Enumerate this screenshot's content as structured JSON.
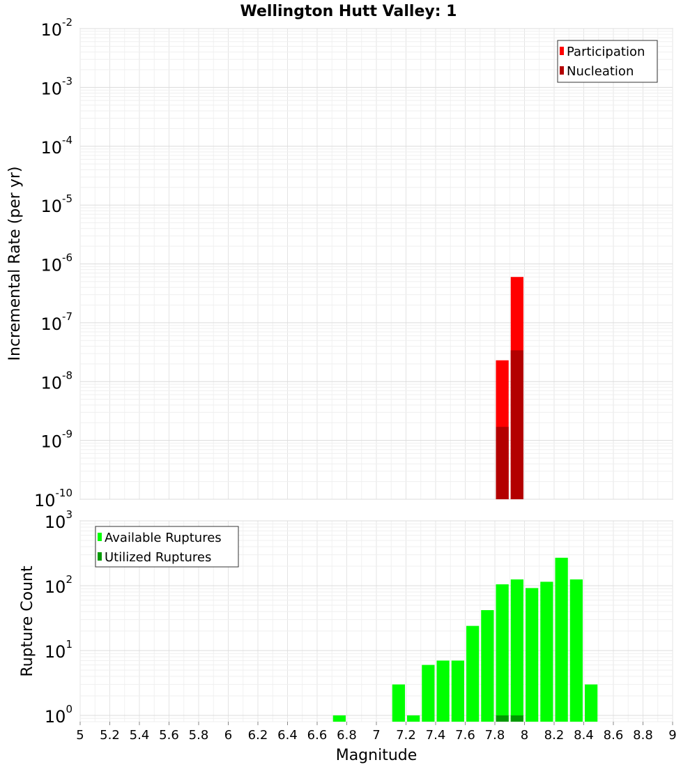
{
  "chart_data": [
    {
      "type": "bar",
      "title": "Wellington Hutt Valley: 1",
      "ylabel": "Incremental Rate (per yr)",
      "xlabel": "",
      "xlim": [
        5,
        9
      ],
      "ylim": [
        1e-10,
        0.01
      ],
      "yscale": "log",
      "bin_width": 0.1,
      "grid": true,
      "legend_position": "top-right",
      "ytick_exponents": [
        "-10",
        "-9",
        "-8",
        "-7",
        "-6",
        "-5",
        "-4",
        "-3",
        "-2"
      ],
      "ytick_base": "10",
      "series": [
        {
          "name": "Participation",
          "color": "#ff0000",
          "x": [
            7.85,
            7.95
          ],
          "values": [
            2.3e-08,
            6e-07
          ]
        },
        {
          "name": "Nucleation",
          "color": "#b30000",
          "x": [
            7.85,
            7.95
          ],
          "values": [
            1.7e-09,
            3.4e-08
          ]
        }
      ]
    },
    {
      "type": "bar",
      "title": "",
      "ylabel": "Rupture Count",
      "xlabel": "Magnitude",
      "xlim": [
        5,
        9
      ],
      "ylim": [
        0.8,
        1000
      ],
      "yscale": "log",
      "bin_width": 0.1,
      "grid": true,
      "legend_position": "top-left",
      "ytick_exponents": [
        "0",
        "1",
        "2",
        "3"
      ],
      "ytick_base": "10",
      "xtick_labels": [
        "5",
        "5.2",
        "5.4",
        "5.6",
        "5.8",
        "6",
        "6.2",
        "6.4",
        "6.6",
        "6.8",
        "7",
        "7.2",
        "7.4",
        "7.6",
        "7.8",
        "8",
        "8.2",
        "8.4",
        "8.6",
        "8.8",
        "9"
      ],
      "series": [
        {
          "name": "Available Ruptures",
          "color": "#00ff00",
          "x": [
            6.75,
            7.15,
            7.25,
            7.35,
            7.45,
            7.55,
            7.65,
            7.75,
            7.85,
            7.95,
            8.05,
            8.15,
            8.25,
            8.35,
            8.45
          ],
          "values": [
            1,
            3,
            1,
            6,
            7,
            7,
            24,
            42,
            105,
            125,
            92,
            115,
            270,
            125,
            3
          ]
        },
        {
          "name": "Utilized Ruptures",
          "color": "#009900",
          "x": [
            7.85,
            7.95
          ],
          "values": [
            1,
            1
          ]
        }
      ]
    }
  ]
}
